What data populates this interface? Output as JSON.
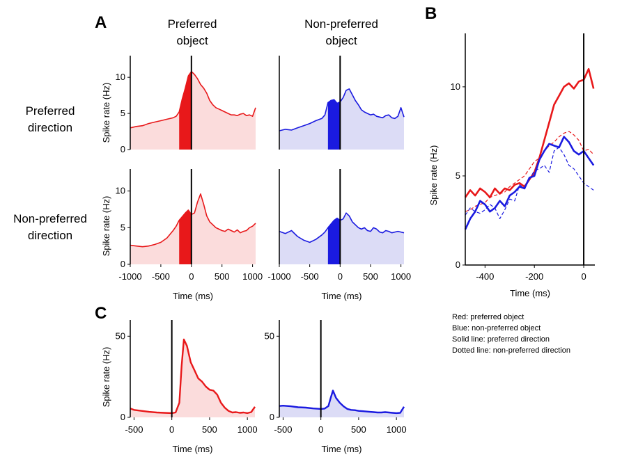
{
  "figure": {
    "panel_labels": {
      "a": "A",
      "b": "B",
      "c": "C"
    },
    "column_titles": [
      {
        "line1": "Preferred",
        "line2": "object"
      },
      {
        "line1": "Non-preferred",
        "line2": "object"
      }
    ],
    "row_titles": [
      {
        "line1": "Preferred",
        "line2": "direction"
      },
      {
        "line1": "Non-preferred",
        "line2": "direction"
      }
    ],
    "legend_lines": [
      "Red: preferred object",
      "Blue: non-preferred object",
      "Solid line: preferred direction",
      "Dotted line: non-preferred direction"
    ],
    "colors": {
      "red": "#e8181a",
      "red_fill": "#fbdcdc",
      "blue": "#1a1ae0",
      "blue_fill": "#dcdcf6"
    }
  },
  "chart_data": [
    {
      "id": "A-pref-obj-pref-dir",
      "panel": "A",
      "type": "area",
      "xlabel": "",
      "ylabel": "Spike rate (Hz)",
      "xlim": [
        -1000,
        1050
      ],
      "ylim": [
        0,
        13
      ],
      "yticks": [
        0,
        5,
        10
      ],
      "xticks": [],
      "color": "red",
      "highlight_window": [
        -200,
        0
      ],
      "event_line_x": 0,
      "x": [
        -1000,
        -900,
        -800,
        -700,
        -600,
        -500,
        -400,
        -300,
        -250,
        -200,
        -150,
        -100,
        -50,
        0,
        50,
        100,
        150,
        200,
        250,
        300,
        350,
        400,
        450,
        500,
        550,
        600,
        650,
        700,
        750,
        800,
        850,
        900,
        950,
        1000,
        1050
      ],
      "y": [
        3.0,
        3.2,
        3.3,
        3.6,
        3.8,
        4.0,
        4.2,
        4.4,
        4.6,
        5.2,
        7.0,
        8.5,
        10.2,
        10.8,
        10.4,
        9.8,
        9.0,
        8.5,
        7.8,
        6.8,
        6.2,
        5.8,
        5.6,
        5.4,
        5.2,
        5.0,
        4.8,
        4.8,
        4.7,
        4.9,
        5.0,
        4.7,
        4.8,
        4.6,
        5.8
      ]
    },
    {
      "id": "A-nonpref-obj-pref-dir",
      "panel": "A",
      "type": "area",
      "xlabel": "",
      "ylabel": "",
      "xlim": [
        -1000,
        1050
      ],
      "ylim": [
        0,
        13
      ],
      "yticks": [],
      "xticks": [],
      "color": "blue",
      "highlight_window": [
        -200,
        0
      ],
      "event_line_x": 0,
      "x": [
        -1000,
        -900,
        -800,
        -700,
        -600,
        -500,
        -400,
        -300,
        -250,
        -200,
        -150,
        -100,
        -50,
        0,
        50,
        100,
        150,
        200,
        250,
        300,
        350,
        400,
        450,
        500,
        550,
        600,
        650,
        700,
        750,
        800,
        850,
        900,
        950,
        1000,
        1050
      ],
      "y": [
        2.6,
        2.8,
        2.7,
        3.0,
        3.3,
        3.6,
        4.0,
        4.3,
        4.8,
        6.5,
        6.8,
        6.9,
        6.4,
        6.6,
        7.2,
        8.2,
        8.4,
        7.6,
        6.8,
        6.2,
        5.5,
        5.2,
        5.0,
        4.8,
        4.9,
        4.6,
        4.5,
        4.4,
        4.7,
        4.8,
        4.4,
        4.3,
        4.6,
        5.8,
        4.5
      ]
    },
    {
      "id": "A-pref-obj-nonpref-dir",
      "panel": "A",
      "type": "area",
      "xlabel": "Time (ms)",
      "ylabel": "Spike rate (Hz)",
      "xlim": [
        -1000,
        1050
      ],
      "ylim": [
        0,
        13
      ],
      "yticks": [
        0,
        5,
        10
      ],
      "xticks": [
        -1000,
        -500,
        0,
        500,
        1000
      ],
      "color": "red",
      "highlight_window": [
        -200,
        0
      ],
      "event_line_x": 0,
      "x": [
        -1000,
        -900,
        -800,
        -700,
        -600,
        -500,
        -400,
        -300,
        -250,
        -200,
        -150,
        -100,
        -50,
        0,
        50,
        100,
        150,
        200,
        250,
        300,
        350,
        400,
        450,
        500,
        550,
        600,
        650,
        700,
        750,
        800,
        850,
        900,
        950,
        1000,
        1050
      ],
      "y": [
        2.6,
        2.5,
        2.4,
        2.5,
        2.7,
        3.0,
        3.6,
        4.6,
        5.2,
        6.0,
        6.5,
        7.0,
        7.4,
        6.8,
        7.0,
        8.5,
        9.6,
        8.2,
        6.6,
        5.8,
        5.4,
        5.0,
        4.8,
        4.6,
        4.5,
        4.8,
        4.6,
        4.4,
        4.7,
        4.3,
        4.5,
        4.6,
        5.0,
        5.2,
        5.6
      ]
    },
    {
      "id": "A-nonpref-obj-nonpref-dir",
      "panel": "A",
      "type": "area",
      "xlabel": "Time (ms)",
      "ylabel": "",
      "xlim": [
        -1000,
        1050
      ],
      "ylim": [
        0,
        13
      ],
      "yticks": [],
      "xticks": [
        -1000,
        -500,
        0,
        500,
        1000
      ],
      "color": "blue",
      "highlight_window": [
        -200,
        0
      ],
      "event_line_x": 0,
      "x": [
        -1000,
        -900,
        -800,
        -700,
        -600,
        -500,
        -400,
        -300,
        -250,
        -200,
        -150,
        -100,
        -50,
        0,
        50,
        100,
        150,
        200,
        250,
        300,
        350,
        400,
        450,
        500,
        550,
        600,
        650,
        700,
        750,
        800,
        850,
        900,
        950,
        1000,
        1050
      ],
      "y": [
        4.5,
        4.2,
        4.6,
        3.8,
        3.3,
        3.0,
        3.4,
        4.0,
        4.4,
        5.0,
        5.5,
        6.0,
        6.3,
        6.0,
        6.2,
        7.0,
        6.6,
        5.8,
        5.4,
        5.0,
        4.8,
        5.0,
        4.6,
        4.5,
        5.0,
        4.8,
        4.4,
        4.3,
        4.6,
        4.5,
        4.3,
        4.4,
        4.5,
        4.4,
        4.3
      ]
    },
    {
      "id": "B",
      "panel": "B",
      "type": "line",
      "xlabel": "Time (ms)",
      "ylabel": "Spike rate (Hz)",
      "xlim": [
        -480,
        45
      ],
      "ylim": [
        0,
        13
      ],
      "yticks": [
        0,
        5,
        10
      ],
      "xticks": [
        -400,
        -200,
        0
      ],
      "event_line_x": 0,
      "x": [
        -480,
        -460,
        -440,
        -420,
        -400,
        -380,
        -360,
        -340,
        -320,
        -300,
        -280,
        -260,
        -240,
        -220,
        -200,
        -180,
        -160,
        -140,
        -120,
        -100,
        -80,
        -60,
        -40,
        -20,
        0,
        20,
        40
      ],
      "series": [
        {
          "color": "red",
          "style": "solid",
          "y": [
            3.8,
            4.2,
            3.9,
            4.3,
            4.1,
            3.8,
            4.3,
            4.0,
            4.3,
            4.2,
            4.5,
            4.6,
            4.4,
            4.8,
            5.2,
            6.0,
            7.0,
            8.0,
            9.0,
            9.5,
            10.0,
            10.2,
            9.9,
            10.3,
            10.4,
            11.0,
            9.9
          ]
        },
        {
          "color": "red",
          "style": "dotted",
          "y": [
            3.0,
            3.1,
            3.3,
            3.4,
            3.5,
            3.8,
            3.9,
            4.0,
            4.1,
            4.4,
            4.6,
            4.8,
            5.0,
            5.4,
            5.8,
            6.0,
            6.4,
            6.7,
            6.9,
            7.2,
            7.4,
            7.5,
            7.3,
            7.0,
            6.4,
            6.5,
            6.2
          ]
        },
        {
          "color": "blue",
          "style": "solid",
          "y": [
            2.0,
            2.6,
            3.0,
            3.6,
            3.4,
            3.0,
            3.2,
            3.6,
            3.3,
            3.9,
            4.1,
            4.4,
            4.3,
            4.9,
            5.0,
            5.9,
            6.4,
            6.8,
            6.7,
            6.6,
            7.2,
            6.9,
            6.4,
            6.2,
            6.4,
            6.0,
            5.6
          ]
        },
        {
          "color": "blue",
          "style": "dotted",
          "y": [
            2.8,
            3.2,
            3.0,
            2.9,
            3.1,
            3.4,
            3.2,
            2.6,
            3.1,
            3.7,
            3.6,
            4.5,
            4.3,
            4.8,
            5.3,
            5.4,
            5.6,
            5.2,
            6.4,
            6.6,
            6.2,
            5.6,
            5.4,
            5.0,
            4.6,
            4.4,
            4.2
          ]
        }
      ]
    },
    {
      "id": "C-preferred",
      "panel": "C",
      "type": "area",
      "xlabel": "Time (ms)",
      "ylabel": "Spike rate (Hz)",
      "xlim": [
        -550,
        1100
      ],
      "ylim": [
        0,
        60
      ],
      "yticks": [
        0,
        50
      ],
      "xticks": [
        -500,
        0,
        500,
        1000
      ],
      "color": "red",
      "event_line_x": 0,
      "x": [
        -550,
        -500,
        -400,
        -300,
        -200,
        -100,
        0,
        50,
        100,
        130,
        160,
        200,
        250,
        300,
        350,
        400,
        450,
        500,
        550,
        600,
        650,
        700,
        750,
        800,
        850,
        900,
        950,
        1000,
        1050,
        1100
      ],
      "y": [
        5.5,
        4.6,
        4.0,
        3.4,
        3.0,
        2.8,
        2.6,
        3.0,
        9.0,
        32.0,
        48.0,
        44.0,
        34.0,
        29.0,
        24.0,
        22.0,
        19.0,
        17.0,
        16.5,
        14.0,
        9.0,
        6.0,
        4.0,
        3.0,
        3.2,
        2.8,
        3.0,
        2.6,
        3.2,
        6.5
      ]
    },
    {
      "id": "C-nonpreferred",
      "panel": "C",
      "type": "area",
      "xlabel": "Time (ms)",
      "ylabel": "",
      "xlim": [
        -550,
        1100
      ],
      "ylim": [
        0,
        60
      ],
      "yticks": [
        0,
        50
      ],
      "xticks": [
        -500,
        0,
        500,
        1000
      ],
      "color": "blue",
      "event_line_x": 0,
      "x": [
        -550,
        -500,
        -400,
        -300,
        -200,
        -100,
        0,
        50,
        100,
        130,
        160,
        200,
        250,
        300,
        350,
        400,
        450,
        500,
        550,
        600,
        650,
        700,
        750,
        800,
        850,
        900,
        950,
        1000,
        1050,
        1100
      ],
      "y": [
        7.0,
        7.2,
        6.8,
        6.2,
        6.0,
        5.5,
        5.2,
        5.4,
        7.0,
        12.0,
        16.5,
        12.0,
        9.0,
        6.8,
        5.2,
        4.6,
        4.4,
        4.0,
        3.8,
        3.6,
        3.4,
        3.2,
        3.0,
        3.0,
        3.2,
        3.0,
        2.8,
        2.6,
        2.8,
        6.5
      ]
    }
  ]
}
